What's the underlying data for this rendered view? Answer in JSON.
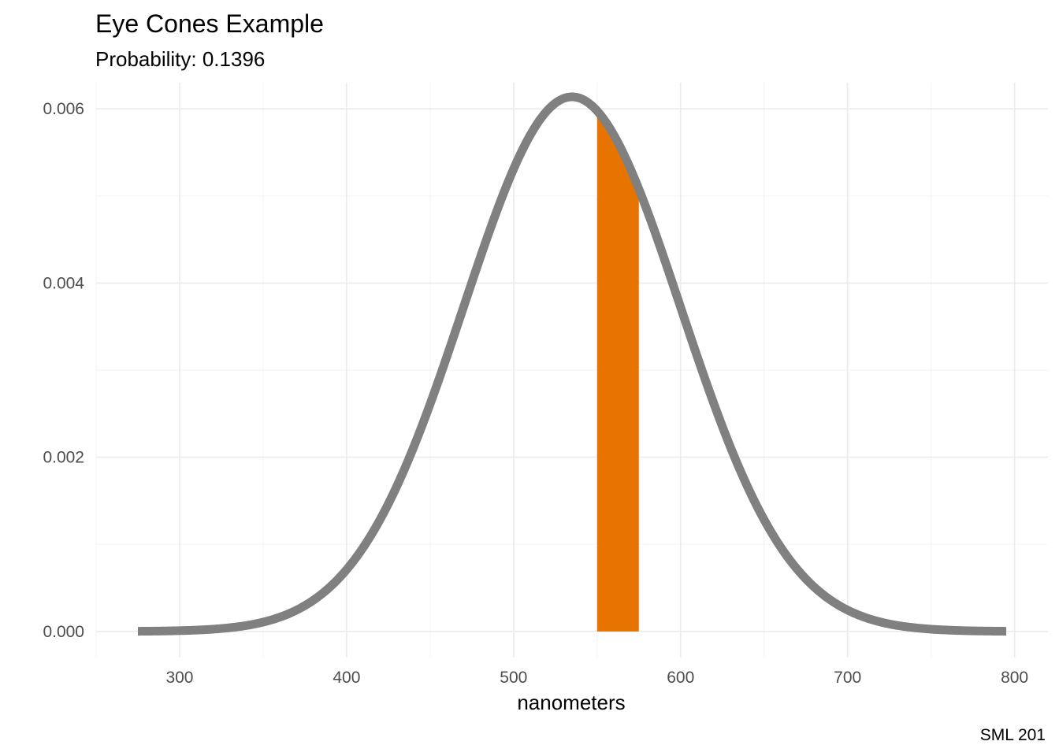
{
  "chart_data": {
    "type": "area",
    "title": "Eye Cones Example",
    "subtitle": "Probability: 0.1396",
    "xlabel": "nanometers",
    "ylabel": "",
    "caption": "SML 201",
    "xlim": [
      250,
      820
    ],
    "ylim": [
      -0.0003,
      0.0063
    ],
    "x_ticks": [
      300,
      400,
      500,
      600,
      700,
      800
    ],
    "x_tick_labels": [
      "300",
      "400",
      "500",
      "600",
      "700",
      "800"
    ],
    "y_ticks": [
      0.0,
      0.002,
      0.004,
      0.006
    ],
    "y_tick_labels": [
      "0.000",
      "0.002",
      "0.004",
      "0.006"
    ],
    "grid": true,
    "series": [
      {
        "kind": "density-curve",
        "distribution": "normal",
        "mean": 535,
        "sd": 65,
        "x_range": [
          275,
          795
        ],
        "color": "#808080"
      },
      {
        "kind": "shaded-region",
        "x_range": [
          550,
          575
        ],
        "probability": 0.1396,
        "color": "#E87400"
      }
    ]
  }
}
